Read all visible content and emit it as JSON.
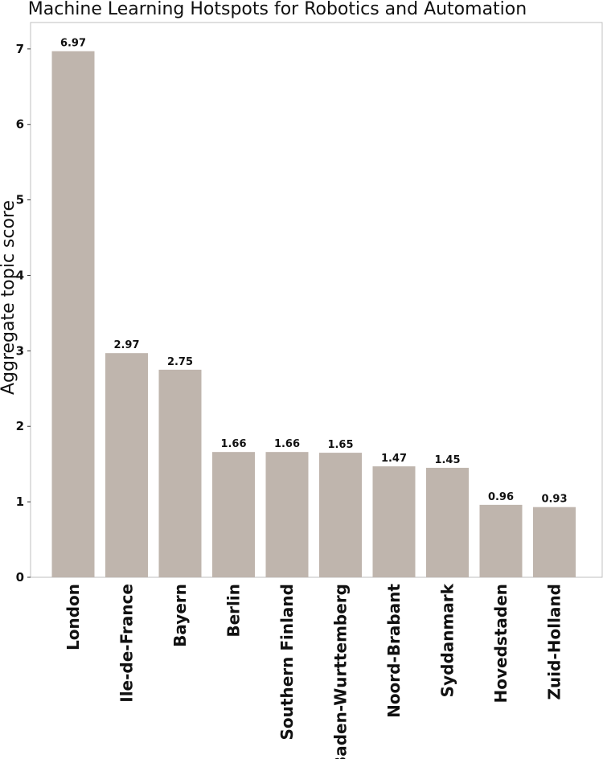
{
  "chart_data": {
    "type": "bar",
    "title": "Machine Learning Hotspots for Robotics and Automation",
    "xlabel": "",
    "ylabel": "Aggregate topic score",
    "categories": [
      "London",
      "Ile-de-France",
      "Bayern",
      "Berlin",
      "Southern Finland",
      "Baden-Wurttemberg",
      "Noord-Brabant",
      "Syddanmark",
      "Hovedstaden",
      "Zuid-Holland"
    ],
    "values": [
      6.97,
      2.97,
      2.75,
      1.66,
      1.66,
      1.65,
      1.47,
      1.45,
      0.96,
      0.93
    ],
    "data_labels": [
      "6.97",
      "2.97",
      "2.75",
      "1.66",
      "1.66",
      "1.65",
      "1.47",
      "1.45",
      "0.96",
      "0.93"
    ],
    "yticks": [
      0,
      1,
      2,
      3,
      4,
      5,
      6,
      7
    ],
    "ylim": [
      0,
      7.35
    ],
    "grid": false,
    "bar_color": "#bfb5ad"
  }
}
